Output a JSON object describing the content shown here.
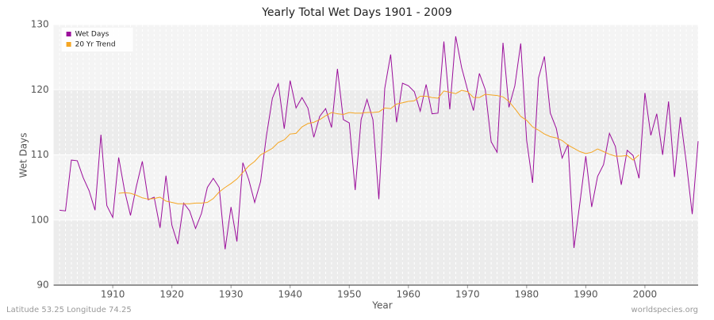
{
  "chart_data": {
    "type": "line",
    "title": "Yearly Total Wet Days 1901 - 2009",
    "xlabel": "Year",
    "ylabel": "Wet Days",
    "footer_left": "Latitude 53.25 Longitude 74.25",
    "footer_right": "worldspecies.org",
    "legend": "top-left",
    "grid": true,
    "xlim": [
      1900,
      2009
    ],
    "ylim": [
      90,
      130
    ],
    "xticks": [
      1910,
      1920,
      1930,
      1940,
      1950,
      1960,
      1970,
      1980,
      1990,
      2000
    ],
    "yticks": [
      90,
      100,
      110,
      120,
      130
    ],
    "x": [
      1901,
      1902,
      1903,
      1904,
      1905,
      1906,
      1907,
      1908,
      1909,
      1910,
      1911,
      1912,
      1913,
      1914,
      1915,
      1916,
      1917,
      1918,
      1919,
      1920,
      1921,
      1922,
      1923,
      1924,
      1925,
      1926,
      1927,
      1928,
      1929,
      1930,
      1931,
      1932,
      1933,
      1934,
      1935,
      1936,
      1937,
      1938,
      1939,
      1940,
      1941,
      1942,
      1943,
      1944,
      1945,
      1946,
      1947,
      1948,
      1949,
      1950,
      1951,
      1952,
      1953,
      1954,
      1955,
      1956,
      1957,
      1958,
      1959,
      1960,
      1961,
      1962,
      1963,
      1964,
      1965,
      1966,
      1967,
      1968,
      1969,
      1970,
      1971,
      1972,
      1973,
      1974,
      1975,
      1976,
      1977,
      1978,
      1979,
      1980,
      1981,
      1982,
      1983,
      1984,
      1985,
      1986,
      1987,
      1988,
      1989,
      1990,
      1991,
      1992,
      1993,
      1994,
      1995,
      1996,
      1997,
      1998,
      1999,
      2000,
      2001,
      2002,
      2003,
      2004,
      2005,
      2006,
      2007,
      2008,
      2009
    ],
    "series": [
      {
        "name": "Wet Days",
        "color": "#9b0f9b",
        "values": [
          101.5,
          101.4,
          109.2,
          109.1,
          106.5,
          104.5,
          101.5,
          113.1,
          102.2,
          100.4,
          109.6,
          104.5,
          100.7,
          105.2,
          109.0,
          103.1,
          103.5,
          98.8,
          106.8,
          99.2,
          96.3,
          102.6,
          101.4,
          98.7,
          101.0,
          105.0,
          106.4,
          105.0,
          95.5,
          102.0,
          96.7,
          108.8,
          106.2,
          102.7,
          105.9,
          113.0,
          118.7,
          120.9,
          114.0,
          121.4,
          117.2,
          118.8,
          117.2,
          112.7,
          115.9,
          117.1,
          114.2,
          123.2,
          115.4,
          114.9,
          104.6,
          115.4,
          118.5,
          115.4,
          103.2,
          120.2,
          125.4,
          115.0,
          121.0,
          120.6,
          119.7,
          116.7,
          120.8,
          116.3,
          116.4,
          127.4,
          117.0,
          128.2,
          123.4,
          120.0,
          116.8,
          122.5,
          120.0,
          112.0,
          110.4,
          127.2,
          117.3,
          120.6,
          127.1,
          112.2,
          105.7,
          121.8,
          125.1,
          116.4,
          114.1,
          109.5,
          111.6,
          95.7,
          102.6,
          109.8,
          102.0,
          106.7,
          108.5,
          113.3,
          111.3,
          105.4,
          110.7,
          109.9,
          106.4,
          119.5,
          113.0,
          116.3,
          110.0,
          118.2,
          106.6,
          115.8,
          108.8,
          100.9,
          112.1
        ]
      },
      {
        "name": "20 Yr Trend",
        "color": "#f5a623",
        "values": [
          null,
          null,
          null,
          null,
          null,
          null,
          null,
          null,
          null,
          null,
          104.1,
          104.2,
          104.1,
          103.8,
          103.4,
          103.2,
          103.3,
          103.5,
          102.9,
          102.7,
          102.5,
          102.5,
          102.5,
          102.6,
          102.6,
          102.7,
          103.3,
          104.3,
          105.0,
          105.6,
          106.3,
          107.3,
          108.3,
          109.0,
          110.0,
          110.5,
          111.0,
          111.9,
          112.3,
          113.2,
          113.3,
          114.3,
          114.8,
          115.0,
          115.4,
          116.0,
          116.5,
          116.3,
          116.2,
          116.5,
          116.4,
          116.4,
          116.5,
          116.5,
          116.6,
          117.2,
          117.1,
          117.8,
          118.0,
          118.2,
          118.3,
          119.0,
          119.0,
          118.8,
          118.7,
          119.8,
          119.6,
          119.4,
          119.9,
          119.7,
          118.8,
          118.8,
          119.3,
          119.2,
          119.1,
          118.9,
          118.2,
          117.1,
          115.9,
          115.3,
          114.3,
          113.8,
          113.2,
          112.8,
          112.6,
          112.2,
          111.5,
          111.0,
          110.5,
          110.2,
          110.4,
          110.9,
          110.5,
          110.1,
          109.8,
          109.8,
          109.9,
          109.2,
          110.0,
          null,
          null,
          null,
          null,
          null,
          null,
          null,
          null,
          null,
          null
        ]
      }
    ]
  }
}
